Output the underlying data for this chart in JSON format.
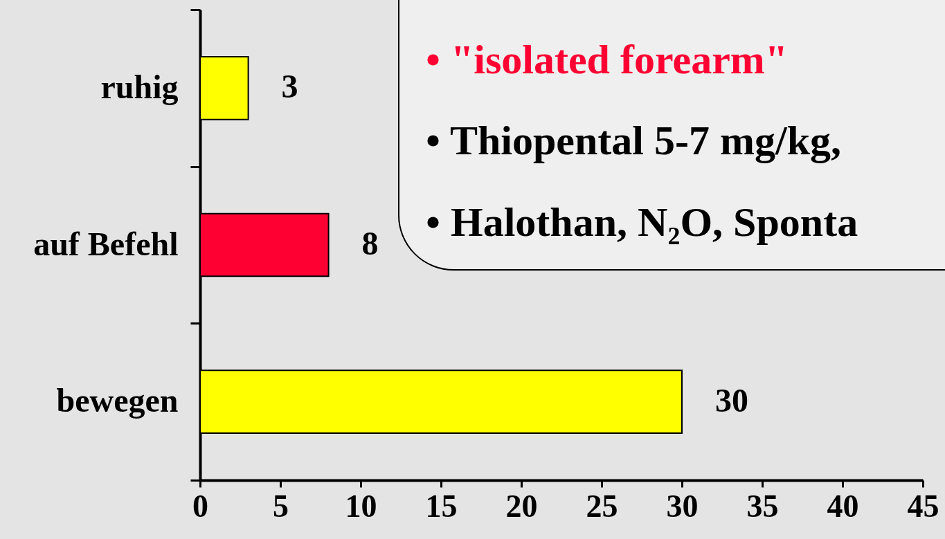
{
  "chart_data": {
    "type": "bar",
    "orientation": "horizontal",
    "categories": [
      "ruhig",
      "auf Befehl",
      "bewegen"
    ],
    "values": [
      3,
      8,
      30
    ],
    "colors": [
      "#ffff00",
      "#ff0033",
      "#ffff00"
    ],
    "xlim": [
      0,
      45
    ],
    "xticks": [
      0,
      5,
      10,
      15,
      20,
      25,
      30,
      35,
      40,
      45
    ],
    "data_labels": true,
    "grid": false,
    "annotations": [
      "• \"isolated forearm\"",
      "• Thiopental 5-7 mg/kg,",
      "• Halothan, N₂O, Sponta"
    ]
  }
}
